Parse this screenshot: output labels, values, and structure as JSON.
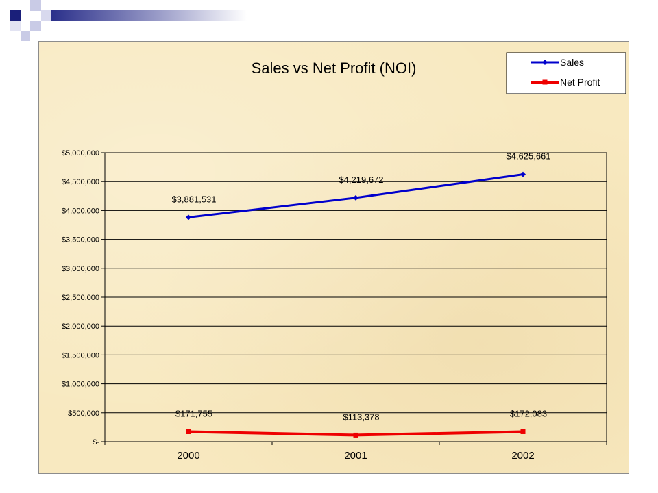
{
  "chart_data": {
    "type": "line",
    "title": "Sales vs Net Profit (NOI)",
    "categories": [
      "2000",
      "2001",
      "2002"
    ],
    "ylim": [
      0,
      5000000
    ],
    "y_ticks": [
      0,
      500000,
      1000000,
      1500000,
      2000000,
      2500000,
      3000000,
      3500000,
      4000000,
      4500000,
      5000000
    ],
    "y_tick_labels": [
      "$-",
      "$500,000",
      "$1,000,000",
      "$1,500,000",
      "$2,000,000",
      "$2,500,000",
      "$3,000,000",
      "$3,500,000",
      "$4,000,000",
      "$4,500,000",
      "$5,000,000"
    ],
    "grid": "horizontal",
    "legend_position": "top-right",
    "series": [
      {
        "name": "Sales",
        "color": "#0000cc",
        "marker": "diamond",
        "values": [
          3881531,
          4219672,
          4625661
        ],
        "labels": [
          "$3,881,531",
          "$4,219,672",
          "$4,625,661"
        ]
      },
      {
        "name": "Net Profit",
        "color": "#ee0000",
        "marker": "square",
        "values": [
          171755,
          113378,
          172083
        ],
        "labels": [
          "$171,755",
          "$113,378",
          "$172,083"
        ]
      }
    ]
  }
}
